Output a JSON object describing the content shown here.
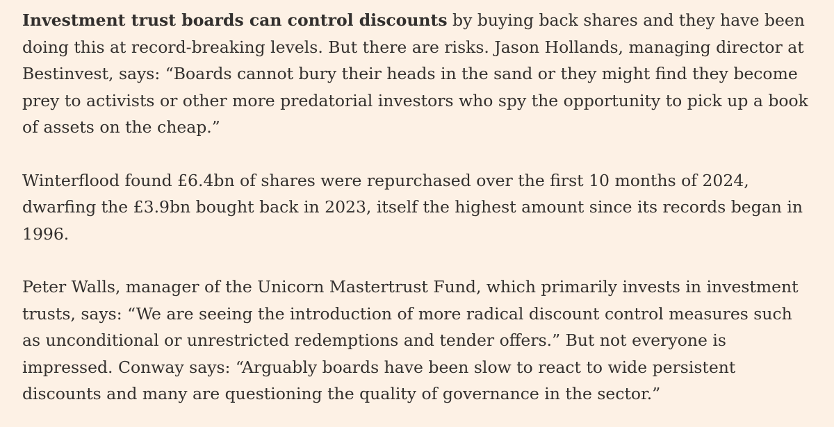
{
  "article": {
    "paragraphs": [
      {
        "lead_bold": "Investment trust boards can control discounts",
        "text": " by buying back shares and they have been doing this at record-breaking levels. But there are risks. Jason Hollands, managing director at Bestinvest, says: “Boards cannot bury their heads in the sand or they might find they become prey to activists or other more predatorial investors who spy the opportunity to pick up a book of assets on the cheap.”"
      },
      {
        "text": "Winterflood found £6.4bn of shares were repurchased over the first 10 months of 2024, dwarfing the £3.9bn bought back in 2023, itself the highest amount since its records began in 1996."
      },
      {
        "text": "Peter Walls, manager of the Unicorn Mastertrust Fund, which primarily invests in investment trusts, says: “We are seeing the introduction of more radical discount control measures such as unconditional or unrestricted redemptions and tender offers.” But not everyone is impressed. Conway says: “Arguably boards have been slow to react to wide persistent discounts and many are questioning the quality of governance in the sector.”"
      }
    ]
  }
}
